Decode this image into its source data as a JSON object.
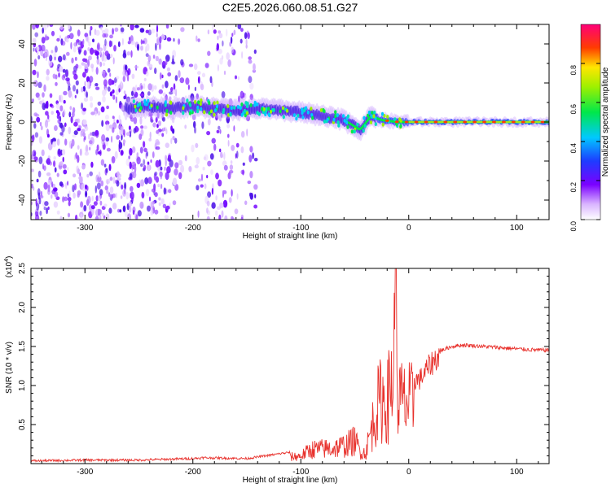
{
  "title": "C2E5.2026.060.08.51.G27",
  "chart_data": [
    {
      "type": "heatmap",
      "xlabel": "Height of straight line (km)",
      "ylabel": "Frequency (Hz)",
      "xlim": [
        -350,
        130
      ],
      "ylim": [
        -50,
        50
      ],
      "x_ticks": [
        "-300",
        "-200",
        "-100",
        "0",
        "100"
      ],
      "y_ticks": [
        "-40",
        "-20",
        "0",
        "20",
        "40"
      ],
      "colorbar": {
        "label": "Normalized spectral amplitude",
        "range": [
          0,
          1
        ],
        "ticks": [
          "0.0",
          "0.2",
          "0.4",
          "0.6",
          "0.8"
        ]
      },
      "ridge": {
        "x": [
          -260,
          -240,
          -220,
          -200,
          -180,
          -160,
          -140,
          -120,
          -100,
          -80,
          -60,
          -45,
          -35,
          -25,
          -10,
          0,
          20,
          50,
          80,
          100,
          130
        ],
        "freq": [
          7,
          8,
          7,
          8,
          7,
          6,
          7,
          6,
          5,
          3,
          1,
          -4,
          3,
          1,
          0,
          0,
          0,
          0,
          0,
          0,
          0
        ]
      },
      "noise_region": [
        -350,
        -140
      ],
      "grid": false
    },
    {
      "type": "line",
      "xlabel": "Height of straight line (km)",
      "ylabel": "SNR (10 * v/v)",
      "y_multiplier": "(x10",
      "y_multiplier_exp": "4",
      "xlim": [
        -350,
        130
      ],
      "ylim": [
        0,
        2.5
      ],
      "x_ticks": [
        "-300",
        "-200",
        "-100",
        "0",
        "100"
      ],
      "y_ticks": [
        "0.5",
        "1.0",
        "1.5",
        "2.0",
        "2.5"
      ],
      "color": "#e8322d",
      "series": [
        {
          "x": [
            -350,
            -300,
            -250,
            -200,
            -190,
            -150,
            -100,
            -90,
            -70,
            -60,
            -50,
            -45,
            -40,
            -35,
            -30,
            -25,
            -20,
            -15,
            -12,
            -10,
            -5,
            0,
            10,
            20,
            30,
            40,
            50,
            70,
            90,
            110,
            130
          ],
          "y": [
            0.02,
            0.03,
            0.03,
            0.05,
            0.06,
            0.05,
            0.15,
            0.28,
            0.3,
            0.35,
            0.45,
            0.25,
            0.2,
            0.6,
            1.0,
            1.2,
            1.1,
            1.6,
            2.5,
            1.2,
            1.1,
            1.1,
            1.1,
            1.3,
            1.45,
            1.5,
            1.52,
            1.5,
            1.48,
            1.46,
            1.45
          ]
        }
      ],
      "grid": false
    }
  ]
}
